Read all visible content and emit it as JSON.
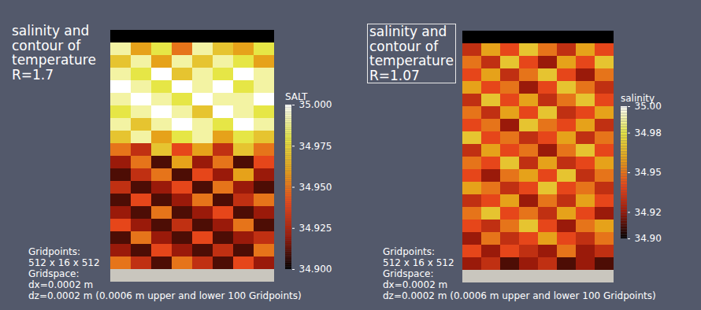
{
  "chart_data": [
    {
      "type": "heatmap",
      "title": "salinity and contour of temperature",
      "annotation": "R=1.7",
      "caption": [
        "Gridpoints:",
        "512 x 16 x 512",
        "Gridspace:",
        "dx=0.0002 m",
        "dz=0.0002 m (0.0006 m upper and lower 100 Gridpoints)"
      ],
      "colorbar_label": "SALT",
      "colorbar_range": [
        34.9,
        35
      ],
      "colorbar_ticks": [
        {
          "value": 35,
          "label": "35.000"
        },
        34.975,
        {
          "value": 34.95,
          "label": "34.950"
        },
        34.925,
        {
          "value": 34.9,
          "label": "34.900"
        }
      ],
      "cells": [
        [
          34.9,
          34.9,
          34.9,
          34.9,
          34.9,
          34.9,
          34.9,
          34.9
        ],
        [
          34.99,
          34.96,
          34.98,
          34.95,
          34.99,
          34.97,
          34.96,
          34.98
        ],
        [
          34.97,
          34.99,
          34.96,
          34.99,
          34.97,
          34.99,
          34.98,
          34.96
        ],
        [
          34.99,
          34.98,
          35.0,
          34.97,
          34.99,
          34.98,
          35.0,
          34.99
        ],
        [
          35.0,
          34.99,
          34.98,
          35.0,
          34.99,
          35.0,
          34.98,
          34.99
        ],
        [
          34.99,
          35.0,
          34.99,
          34.98,
          35.0,
          34.99,
          34.99,
          35.0
        ],
        [
          34.98,
          34.99,
          35.0,
          34.99,
          34.97,
          35.0,
          34.99,
          34.98
        ],
        [
          34.99,
          34.97,
          34.99,
          35.0,
          34.99,
          34.98,
          35.0,
          34.99
        ],
        [
          34.97,
          34.99,
          34.96,
          34.98,
          34.99,
          34.96,
          34.98,
          34.97
        ],
        [
          34.95,
          34.93,
          34.97,
          34.94,
          34.96,
          34.93,
          34.97,
          34.95
        ],
        [
          34.92,
          34.95,
          34.91,
          34.96,
          34.92,
          34.95,
          34.91,
          34.94
        ],
        [
          34.91,
          34.93,
          34.95,
          34.91,
          34.94,
          34.92,
          34.96,
          34.92
        ],
        [
          34.93,
          34.91,
          34.92,
          34.94,
          34.91,
          34.95,
          34.92,
          34.91
        ],
        [
          34.91,
          34.94,
          34.91,
          34.92,
          34.95,
          34.91,
          34.93,
          34.95
        ],
        [
          34.92,
          34.91,
          34.95,
          34.91,
          34.92,
          34.94,
          34.91,
          34.92
        ],
        [
          34.94,
          34.92,
          34.91,
          34.93,
          34.91,
          34.92,
          34.95,
          34.91
        ],
        [
          34.91,
          34.95,
          34.92,
          34.91,
          34.94,
          34.91,
          34.92,
          34.93
        ],
        [
          34.92,
          34.91,
          34.94,
          34.92,
          34.91,
          34.93,
          34.91,
          34.95
        ],
        [
          34.95,
          34.93,
          34.91,
          34.95,
          34.93,
          34.91,
          34.94,
          34.92
        ],
        [
          null,
          null,
          null,
          null,
          null,
          null,
          null,
          null
        ]
      ]
    },
    {
      "type": "heatmap",
      "title": "salinity and contour of temperature",
      "annotation": "R=1.07",
      "caption": [
        "Gridpoints:",
        "512 x 16 x 512",
        "Gridspace:",
        "dx=0.0002 m",
        "dz=0.0002 m (0.0006 m upper and lower 100 Gridpoints)"
      ],
      "colorbar_label": "salinity",
      "colorbar_range": [
        34.9,
        35
      ],
      "colorbar_ticks": [
        {
          "value": 35,
          "label": "35.00"
        },
        34.98,
        34.95,
        34.92,
        {
          "value": 34.9,
          "label": "34.90"
        }
      ],
      "cells": [
        [
          34.9,
          34.9,
          34.9,
          34.9,
          34.9,
          34.9,
          34.9,
          34.9
        ],
        [
          34.93,
          34.96,
          34.94,
          34.97,
          34.95,
          34.93,
          34.96,
          34.94
        ],
        [
          34.95,
          34.93,
          34.97,
          34.94,
          34.92,
          34.96,
          34.94,
          34.97
        ],
        [
          34.94,
          34.96,
          34.93,
          34.95,
          34.97,
          34.94,
          34.92,
          34.95
        ],
        [
          34.96,
          34.94,
          34.95,
          34.92,
          34.94,
          34.97,
          34.95,
          34.93
        ],
        [
          34.93,
          34.97,
          34.94,
          34.96,
          34.93,
          34.95,
          34.97,
          34.94
        ],
        [
          34.95,
          34.93,
          34.96,
          34.94,
          34.97,
          34.93,
          34.94,
          34.96
        ],
        [
          34.94,
          34.95,
          34.92,
          34.97,
          34.95,
          34.94,
          34.96,
          34.93
        ],
        [
          34.97,
          34.94,
          34.95,
          34.93,
          34.94,
          34.96,
          34.93,
          34.95
        ],
        [
          34.93,
          34.96,
          34.94,
          34.95,
          34.92,
          34.95,
          34.97,
          34.94
        ],
        [
          34.95,
          34.94,
          34.97,
          34.93,
          34.96,
          34.93,
          34.94,
          34.96
        ],
        [
          34.94,
          34.92,
          34.95,
          34.96,
          34.94,
          34.97,
          34.93,
          34.95
        ],
        [
          34.96,
          34.95,
          34.93,
          34.94,
          34.97,
          34.94,
          34.95,
          34.93
        ],
        [
          34.93,
          34.94,
          34.96,
          34.92,
          34.95,
          34.93,
          34.96,
          34.94
        ],
        [
          34.95,
          34.97,
          34.94,
          34.95,
          34.93,
          34.96,
          34.94,
          34.92
        ],
        [
          34.94,
          34.93,
          34.95,
          34.97,
          34.94,
          34.92,
          34.95,
          34.96
        ],
        [
          34.92,
          34.95,
          34.93,
          34.94,
          34.96,
          34.94,
          34.93,
          34.95
        ],
        [
          34.94,
          34.92,
          34.94,
          34.93,
          34.92,
          34.95,
          34.92,
          34.93
        ],
        [
          34.92,
          34.93,
          34.91,
          34.92,
          34.93,
          34.91,
          34.92,
          34.91
        ],
        [
          null,
          null,
          null,
          null,
          null,
          null,
          null,
          null
        ]
      ]
    }
  ]
}
